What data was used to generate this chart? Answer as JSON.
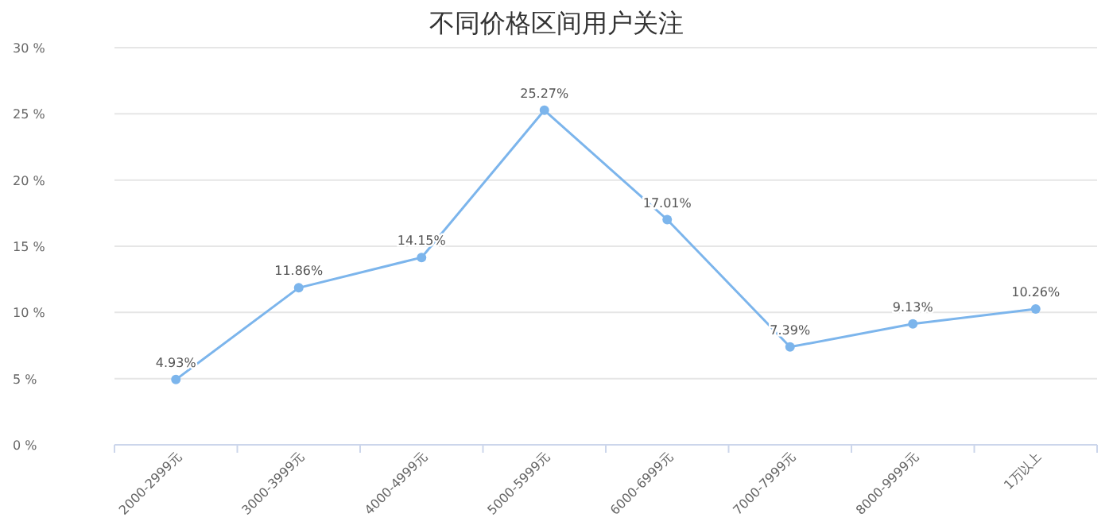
{
  "chart_data": {
    "type": "line",
    "title": "不同价格区间用户关注",
    "categories": [
      "2000-2999元",
      "3000-3999元",
      "4000-4999元",
      "5000-5999元",
      "6000-6999元",
      "7000-7999元",
      "8000-9999元",
      "1万以上"
    ],
    "series": [
      {
        "color": "#7cb5ec",
        "values": [
          4.93,
          11.86,
          14.15,
          25.27,
          17.01,
          7.39,
          9.13,
          10.26
        ],
        "value_labels": [
          "4.93%",
          "11.86%",
          "14.15%",
          "25.27%",
          "17.01%",
          "7.39%",
          "9.13%",
          "10.26%"
        ]
      }
    ],
    "ylim": [
      0,
      30
    ],
    "yticks": [
      {
        "value": 0,
        "label": "0 %"
      },
      {
        "value": 5,
        "label": "5 %"
      },
      {
        "value": 10,
        "label": "10 %"
      },
      {
        "value": 15,
        "label": "15 %"
      },
      {
        "value": 20,
        "label": "20 %"
      },
      {
        "value": 25,
        "label": "25 %"
      },
      {
        "value": 30,
        "label": "30 %"
      }
    ],
    "grid": "y",
    "marker": "circle"
  }
}
